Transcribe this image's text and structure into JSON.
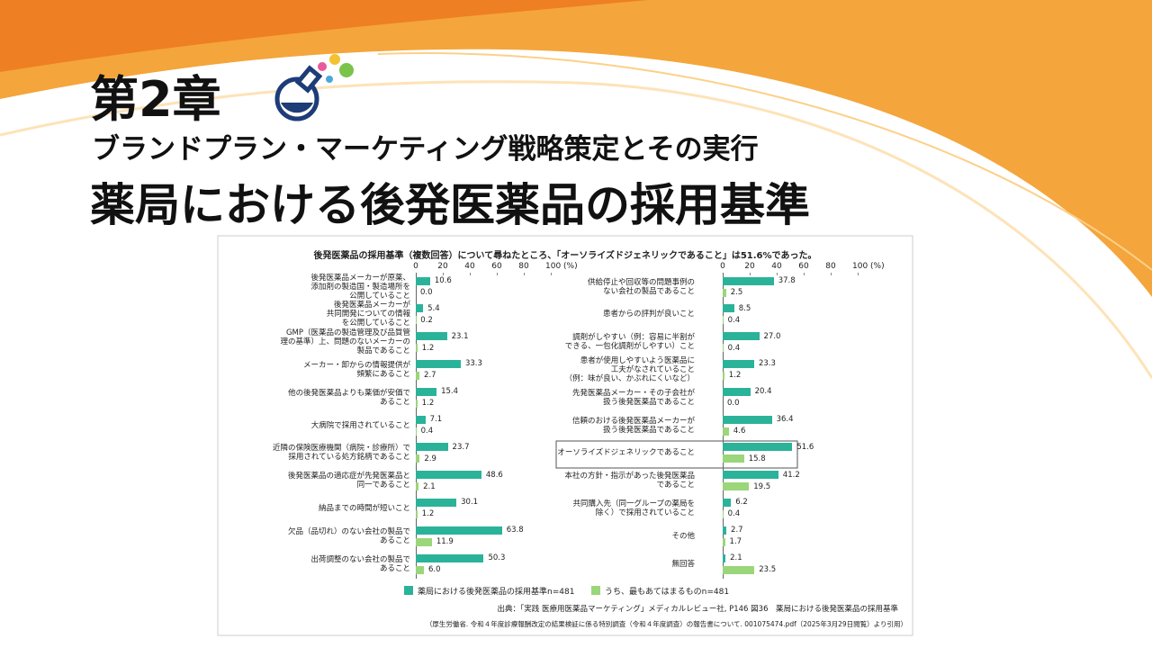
{
  "header": {
    "chapter": "第2章",
    "subtitle": "ブランドプラン・マーケティング戦略策定とその実行",
    "title": "薬局における後発医薬品の採用基準"
  },
  "chart_data": [
    {
      "type": "hbar",
      "title": "後発医薬品の採用基準（複数回答）について尋ねたところ、「オーソライズドジェネリックであること」は51.6%であった。",
      "categories": [
        "後発医薬品メーカーが原薬、\n添加剤の製造国・製造場所を\n公開していること",
        "後発医薬品メーカーが\n共同開発についての情報\nを公開していること",
        "GMP（医薬品の製造管理及び品質管\n理の基準）上、問題のないメーカーの\n製品であること",
        "メーカー・卸からの情報提供が\n頻繁にあること",
        "他の後発医薬品よりも薬価が安価で\nあること",
        "大病院で採用されていること",
        "近隣の保険医療機関（病院・診療所）で\n採用されている処方銘柄であること",
        "後発医薬品の適応症が先発医薬品と\n同一であること",
        "納品までの時間が短いこと",
        "欠品（品切れ）のない会社の製品で\nあること",
        "出荷調整のない会社の製品で\nあること"
      ],
      "series": [
        {
          "name": "薬局における後発医薬品の採用基準n=481",
          "color": "#2bb39a",
          "values": [
            10.6,
            5.4,
            23.1,
            33.3,
            15.4,
            7.1,
            23.7,
            48.6,
            30.1,
            63.8,
            50.3
          ],
          "value_labels": [
            "10.6",
            "5.4",
            "23.1",
            "33.3",
            "15.4",
            "7.1",
            "23.7",
            "48.6",
            "30.1",
            "63.8",
            "50.3"
          ]
        },
        {
          "name": "うち、最もあてはまるものn=481",
          "color": "#9bd67a",
          "values": [
            0,
            0.2,
            1.2,
            2.7,
            1.2,
            0.4,
            2.9,
            2.1,
            1.2,
            11.9,
            6
          ],
          "value_labels": [
            "0.0",
            "0.2",
            "1.2",
            "2.7",
            "1.2",
            "0.4",
            "2.9",
            "2.1",
            "1.2",
            "11.9",
            "6.0"
          ]
        }
      ],
      "xlim": [
        0,
        100
      ],
      "xticks": [
        0,
        20,
        40,
        60,
        80,
        {
          "value": 100,
          "label": "100 (%)"
        }
      ]
    },
    {
      "type": "hbar",
      "categories": [
        "供給停止や回収等の問題事例の\nない会社の製品であること",
        "患者からの評判が良いこと",
        "調剤がしやすい（例：容易に半割が\nできる、一包化調剤がしやすい）こと",
        "患者が使用しやすいよう医薬品に\n工夫がなされていること\n（例：味が良い、かぶれにくいなど）",
        "先発医薬品メーカー・その子会社が\n扱う後発医薬品であること",
        "信頼のおける後発医薬品メーカーが\n扱う後発医薬品であること",
        "オーソライズドジェネリックであること",
        "本社の方針・指示があった後発医薬品\nであること",
        "共同購入先（同一グループの薬局を\n除く）で採用されていること",
        "その他",
        "無回答"
      ],
      "series": [
        {
          "color": "#2bb39a",
          "values": [
            37.8,
            8.5,
            27,
            23.3,
            20.4,
            36.4,
            51.6,
            41.2,
            6.2,
            2.7,
            2.1
          ],
          "value_labels": [
            "37.8",
            "8.5",
            "27.0",
            "23.3",
            "20.4",
            "36.4",
            "51.6",
            "41.2",
            "6.2",
            "2.7",
            "2.1"
          ]
        },
        {
          "color": "#9bd67a",
          "values": [
            2.5,
            0.4,
            0.4,
            1.2,
            0,
            4.6,
            15.8,
            19.5,
            0.4,
            1.7,
            23.5
          ],
          "value_labels": [
            "2.5",
            "0.4",
            "0.4",
            "1.2",
            "0.0",
            "4.6",
            "15.8",
            "19.5",
            "0.4",
            "1.7",
            "23.5"
          ]
        }
      ],
      "xlim": [
        0,
        100
      ],
      "xticks": [
        0,
        20,
        40,
        60,
        80,
        {
          "value": 100,
          "label": "100 (%)"
        }
      ]
    }
  ],
  "source": "出典：「実践 医療用医薬品マーケティング」メディカルレビュー社, P146 図36　薬局における後発医薬品の採用基準",
  "note": "（厚生労働省. 令和４年度診療報酬改定の結果検証に係る特別調査（令和４年度調査）の報告書について. 001075474.pdf（2025年3月29日閲覧）より引用）"
}
